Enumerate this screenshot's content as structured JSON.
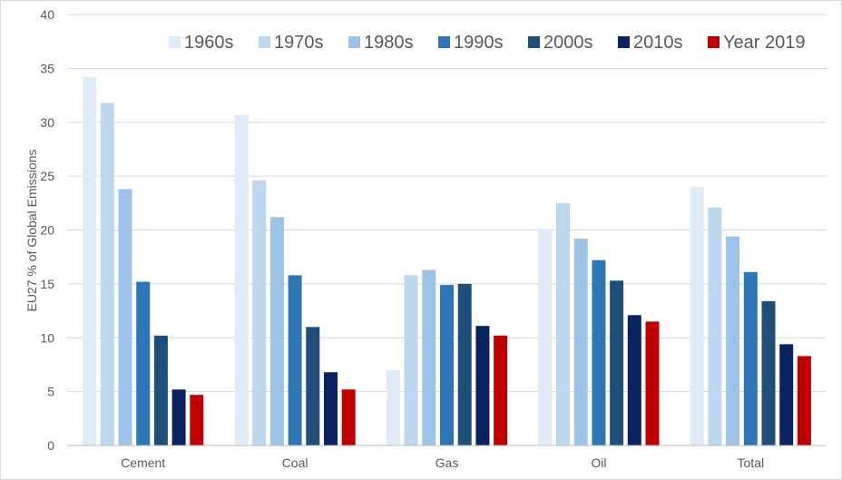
{
  "chart_data": {
    "type": "bar",
    "title": "",
    "xlabel": "",
    "ylabel": "EU27 % of Global Emissions",
    "ylim": [
      0,
      40
    ],
    "yticks": [
      0,
      5,
      10,
      15,
      20,
      25,
      30,
      35,
      40
    ],
    "grid": true,
    "legend_position": "top",
    "categories": [
      "Cement",
      "Coal",
      "Gas",
      "Oil",
      "Total"
    ],
    "series": [
      {
        "name": "1960s",
        "color": "#deebf7",
        "values": [
          34.2,
          30.7,
          7.0,
          20.1,
          24.0
        ]
      },
      {
        "name": "1970s",
        "color": "#bdd7ee",
        "values": [
          31.8,
          24.6,
          15.8,
          22.5,
          22.1
        ]
      },
      {
        "name": "1980s",
        "color": "#9dc3e6",
        "values": [
          23.8,
          21.2,
          16.3,
          19.2,
          19.4
        ]
      },
      {
        "name": "1990s",
        "color": "#2e75b6",
        "values": [
          15.2,
          15.8,
          14.9,
          17.2,
          16.1
        ]
      },
      {
        "name": "2000s",
        "color": "#1f4e79",
        "values": [
          10.2,
          11.0,
          15.0,
          15.3,
          13.4
        ]
      },
      {
        "name": "2010s",
        "color": "#0b2260",
        "values": [
          5.2,
          6.8,
          11.1,
          12.1,
          9.4
        ]
      },
      {
        "name": "Year 2019",
        "color": "#c00000",
        "values": [
          4.7,
          5.2,
          10.2,
          11.5,
          8.3
        ]
      }
    ]
  }
}
